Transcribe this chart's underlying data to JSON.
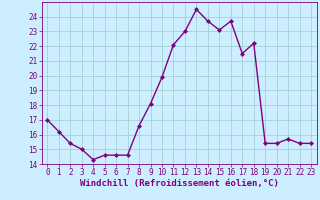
{
  "x": [
    0,
    1,
    2,
    3,
    4,
    5,
    6,
    7,
    8,
    9,
    10,
    11,
    12,
    13,
    14,
    15,
    16,
    17,
    18,
    19,
    20,
    21,
    22,
    23
  ],
  "y": [
    17.0,
    16.2,
    15.4,
    15.0,
    14.3,
    14.6,
    14.6,
    14.6,
    16.6,
    18.1,
    19.9,
    22.1,
    23.0,
    24.5,
    23.7,
    23.1,
    23.7,
    21.5,
    22.2,
    15.4,
    15.4,
    15.7,
    15.4,
    15.4
  ],
  "line_color": "#800080",
  "marker": "D",
  "marker_size": 2,
  "line_width": 1.0,
  "bg_color": "#cceeff",
  "grid_color": "#99cccc",
  "xlabel": "Windchill (Refroidissement éolien,°C)",
  "xlabel_color": "#800080",
  "ylim": [
    14,
    25
  ],
  "xlim": [
    -0.5,
    23.5
  ],
  "yticks": [
    14,
    15,
    16,
    17,
    18,
    19,
    20,
    21,
    22,
    23,
    24
  ],
  "xticks": [
    0,
    1,
    2,
    3,
    4,
    5,
    6,
    7,
    8,
    9,
    10,
    11,
    12,
    13,
    14,
    15,
    16,
    17,
    18,
    19,
    20,
    21,
    22,
    23
  ],
  "tick_color": "#800080",
  "tick_fontsize": 5.5,
  "xlabel_fontsize": 6.5
}
